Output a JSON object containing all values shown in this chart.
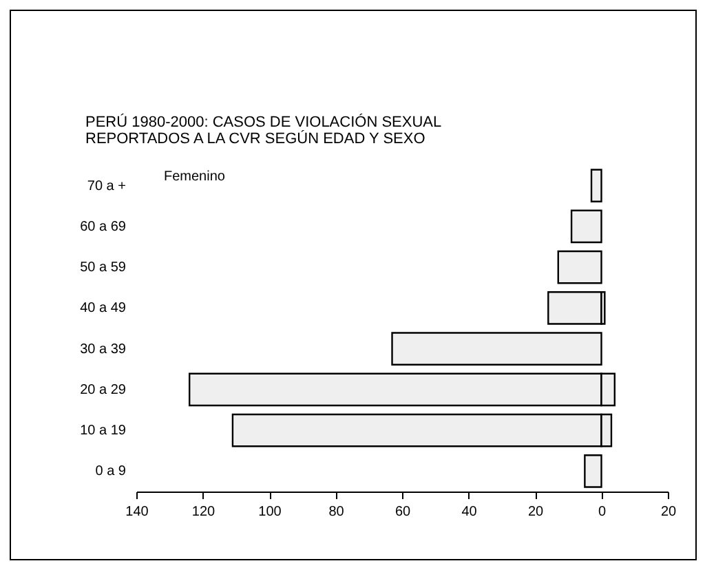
{
  "chart_data": {
    "type": "bar",
    "orientation": "horizontal",
    "title": "PERÚ 1980-2000: CASOS DE VIOLACIÓN SEXUAL\nREPORTADOS A LA CVR SEGÚN EDAD Y SEXO",
    "categories": [
      "70 a +",
      "60 a 69",
      "50 a 59",
      "40 a 49",
      "30 a 39",
      "20 a 29",
      "10 a 19",
      "0 a 9"
    ],
    "series": [
      {
        "name": "Femenino",
        "color": "#efefef",
        "values": [
          -3,
          -9,
          -13,
          -16,
          -63,
          -124,
          -111,
          -5
        ]
      },
      {
        "color": "#efefef",
        "values": [
          null,
          null,
          null,
          1,
          null,
          4,
          3,
          null
        ]
      }
    ],
    "xlim": [
      -140,
      20
    ],
    "xticks": [
      {
        "value": -140,
        "label": "140"
      },
      {
        "value": -120,
        "label": "120"
      },
      {
        "value": -100,
        "label": "100"
      },
      {
        "value": -80,
        "label": "80"
      },
      {
        "value": -60,
        "label": "60"
      },
      {
        "value": -40,
        "label": "40"
      },
      {
        "value": -20,
        "label": "20"
      },
      0,
      20
    ],
    "grid": false
  }
}
